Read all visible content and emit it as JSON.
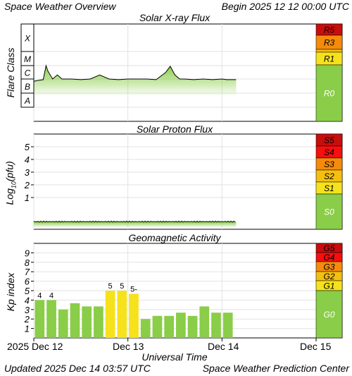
{
  "header": {
    "title": "Space Weather Overview",
    "begin": "Begin 2025 12 12 00:00 UTC"
  },
  "footer": {
    "updated": "Updated 2025 Dec 14 03:57 UTC",
    "center": "Space Weather Prediction Center",
    "xlabel": "Universal Time"
  },
  "time_axis": {
    "ticks": [
      "2025 Dec 12",
      "Dec 13",
      "Dec 14",
      "Dec 15"
    ],
    "tick_days": [
      0,
      1,
      2,
      3
    ],
    "range_days": [
      0,
      3
    ]
  },
  "colors": {
    "fill_green": "#8acd48",
    "scale_yellow": "#f5e21c",
    "scale_gold": "#f5bf0f",
    "scale_orange": "#f58b0b",
    "scale_red": "#f50f0f",
    "scale_darkred": "#c80d0d"
  },
  "chart_data": [
    {
      "type": "area",
      "title": "Solar X-ray Flux",
      "ylabel": "Flare Class",
      "y_categories": [
        "A",
        "B",
        "C",
        "M",
        "X"
      ],
      "x_unit": "days since 2025 Dec 12 00:00 UTC",
      "x": [
        0.0,
        0.05,
        0.1,
        0.13,
        0.15,
        0.2,
        0.25,
        0.3,
        0.4,
        0.5,
        0.6,
        0.7,
        0.8,
        0.9,
        1.0,
        1.1,
        1.2,
        1.3,
        1.4,
        1.45,
        1.5,
        1.55,
        1.6,
        1.7,
        1.8,
        1.9,
        2.0,
        2.05,
        2.1,
        2.15
      ],
      "y_class": [
        "B7",
        "B8",
        "B9",
        "M1",
        "C4",
        "C1",
        "C2",
        "C1",
        "C1",
        "B9",
        "C1",
        "C2",
        "C1",
        "B9",
        "C1",
        "C1",
        "C1",
        "B9",
        "C3",
        "C9",
        "C2",
        "C1",
        "C1",
        "B9",
        "C1",
        "B9",
        "C1",
        "B9",
        "B9",
        "B9"
      ],
      "scale_labels": [
        "R5",
        "R3",
        "R1",
        "R0"
      ]
    },
    {
      "type": "area",
      "title": "Solar Proton Flux",
      "ylabel": "Log10(pfu)",
      "y_ticks": [
        1,
        2,
        3,
        4,
        5
      ],
      "y_range": [
        -1.5,
        6
      ],
      "x_unit": "days since 2025 Dec 12 00:00 UTC",
      "x": [
        0.0,
        0.5,
        1.0,
        1.5,
        2.0,
        2.15
      ],
      "y": [
        -0.9,
        -0.9,
        -0.9,
        -0.9,
        -0.9,
        -0.9
      ],
      "scale_labels": [
        "S5",
        "S4",
        "S3",
        "S2",
        "S1",
        "S0"
      ]
    },
    {
      "type": "bar",
      "title": "Geomagnetic Activity",
      "ylabel": "Kp index",
      "y_ticks": [
        1,
        2,
        3,
        4,
        5,
        6,
        7,
        8,
        9
      ],
      "ylim": [
        0,
        10
      ],
      "x_unit": "days since 2025 Dec 12 00:00 UTC",
      "bar_width_days": 0.125,
      "x_start": [
        0.0,
        0.125,
        0.25,
        0.375,
        0.5,
        0.625,
        0.75,
        0.875,
        1.0,
        1.125,
        1.25,
        1.375,
        1.5,
        1.625,
        1.75,
        1.875,
        2.0,
        2.125
      ],
      "values": [
        4.0,
        4.0,
        3.0,
        3.67,
        3.33,
        3.33,
        5.0,
        5.0,
        4.67,
        2.0,
        2.33,
        2.33,
        2.67,
        2.33,
        3.33,
        2.67,
        2.67,
        0
      ],
      "bar_labels": [
        "4",
        "4",
        "",
        "",
        "",
        "",
        "5",
        "5",
        "5-",
        "",
        "",
        "",
        "",
        "",
        "",
        "",
        "",
        ""
      ],
      "scale_labels": [
        "G5",
        "G4",
        "G3",
        "G2",
        "G1",
        "G0"
      ]
    }
  ]
}
